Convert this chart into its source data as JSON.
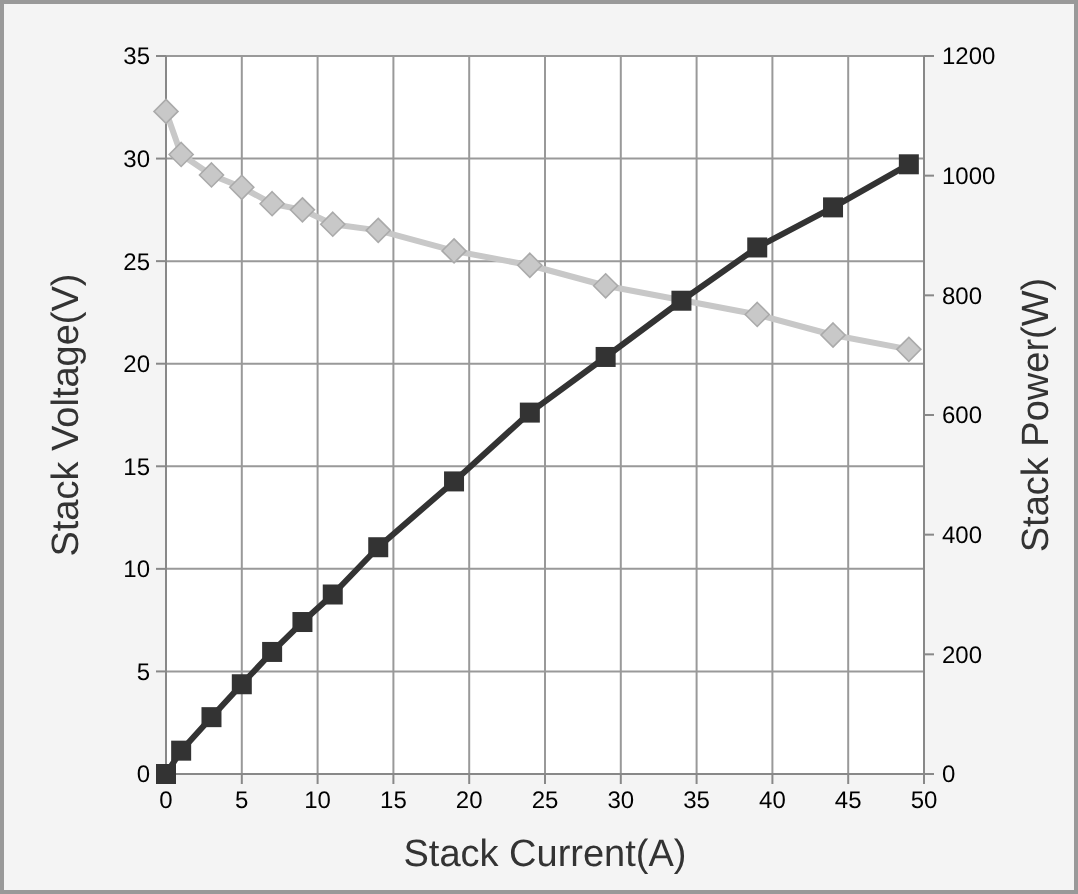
{
  "chart_data": {
    "type": "line",
    "xlabel": "Stack Current(A)",
    "ylabel": "Stack Voltage(V)",
    "y2label": "Stack Power(W)",
    "x": [
      0,
      1,
      3,
      5,
      7,
      9,
      11,
      14,
      19,
      24,
      29,
      34,
      39,
      44,
      49
    ],
    "series": [
      {
        "color": "#c8c8c8",
        "marker": "diamond",
        "x": [
          0,
          1,
          3,
          5,
          7,
          9,
          11,
          14,
          19,
          24,
          29,
          39,
          44,
          49
        ],
        "values": [
          32.3,
          30.2,
          29.2,
          28.6,
          27.8,
          27.5,
          26.8,
          26.5,
          25.5,
          24.8,
          23.8,
          22.4,
          21.4,
          20.7
        ]
      },
      {
        "color": "#333333",
        "marker": "square",
        "axis": "y2",
        "values": [
          0,
          39,
          95,
          150,
          204,
          254,
          300,
          379,
          489,
          604,
          697,
          791,
          880,
          947,
          1019
        ]
      }
    ],
    "xlim": [
      0,
      50
    ],
    "xticks": [
      0,
      5,
      10,
      15,
      20,
      25,
      30,
      35,
      40,
      45,
      50
    ],
    "ylim": [
      0,
      35
    ],
    "yticks": [
      0,
      5,
      10,
      15,
      20,
      25,
      30,
      35
    ],
    "y2lim": [
      0,
      1200
    ],
    "y2ticks": [
      0,
      200,
      400,
      600,
      800,
      1000,
      1200
    ],
    "grid": true,
    "line_style": "solid"
  }
}
